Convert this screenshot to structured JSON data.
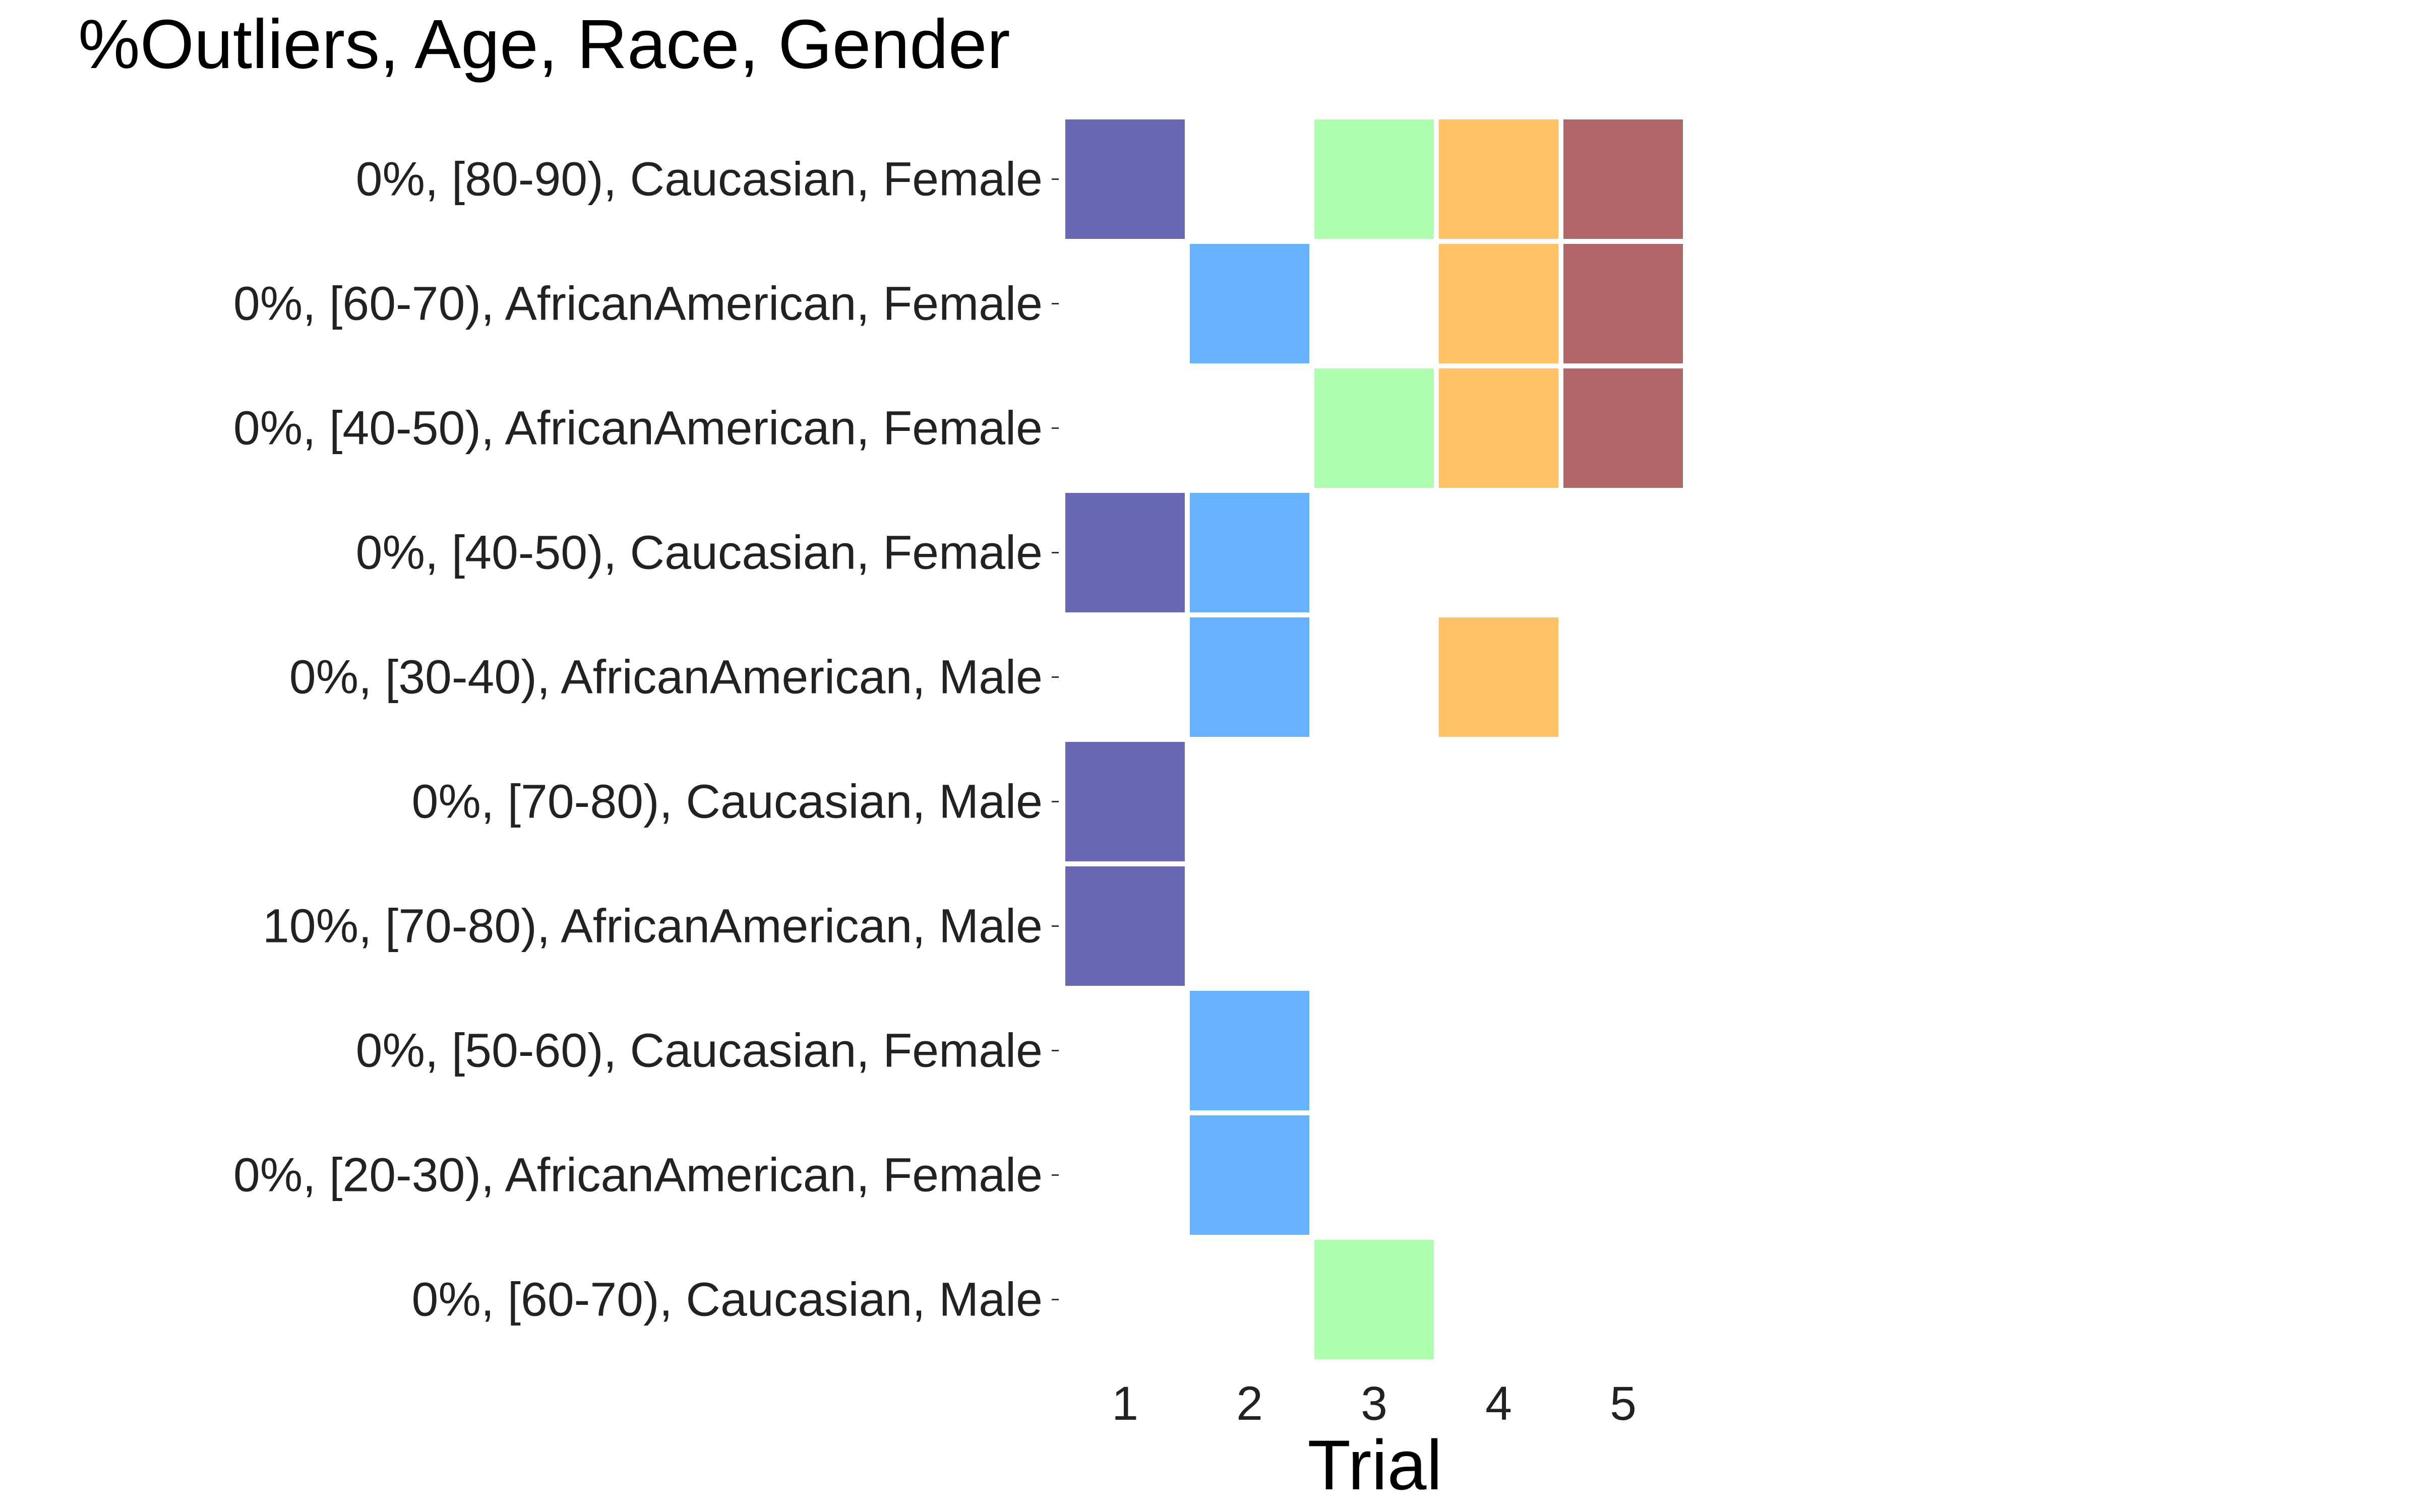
{
  "chart_data": {
    "type": "heatmap",
    "title": "%Outliers, Age, Race, Gender",
    "xlabel": "Trial",
    "ylabel": "",
    "x": [
      1,
      2,
      3,
      4,
      5
    ],
    "x_tick_labels": [
      "1",
      "2",
      "3",
      "4",
      "5"
    ],
    "categories": [
      "0%, [80-90), Caucasian, Female",
      "0%, [60-70), AfricanAmerican, Female",
      "0%, [40-50), AfricanAmerican, Female",
      "0%, [40-50), Caucasian, Female",
      "0%, [30-40), AfricanAmerican, Male",
      "0%, [70-80), Caucasian, Male",
      "10%, [70-80), AfricanAmerican, Male",
      "0%, [50-60), Caucasian, Female",
      "0%, [20-30), AfricanAmerican, Female",
      "0%, [60-70), Caucasian, Male"
    ],
    "trial_colors": {
      "1": "#6868b4",
      "2": "#66b2ff",
      "3": "#adffad",
      "4": "#ffc266",
      "5": "#b06666"
    },
    "cells": [
      {
        "row": 0,
        "trial": 1
      },
      {
        "row": 0,
        "trial": 3
      },
      {
        "row": 0,
        "trial": 4
      },
      {
        "row": 0,
        "trial": 5
      },
      {
        "row": 1,
        "trial": 2
      },
      {
        "row": 1,
        "trial": 4
      },
      {
        "row": 1,
        "trial": 5
      },
      {
        "row": 2,
        "trial": 3
      },
      {
        "row": 2,
        "trial": 4
      },
      {
        "row": 2,
        "trial": 5
      },
      {
        "row": 3,
        "trial": 1
      },
      {
        "row": 3,
        "trial": 2
      },
      {
        "row": 4,
        "trial": 2
      },
      {
        "row": 4,
        "trial": 4
      },
      {
        "row": 5,
        "trial": 1
      },
      {
        "row": 6,
        "trial": 1
      },
      {
        "row": 7,
        "trial": 2
      },
      {
        "row": 8,
        "trial": 2
      },
      {
        "row": 9,
        "trial": 3
      }
    ],
    "grid": false,
    "legend": "none"
  }
}
